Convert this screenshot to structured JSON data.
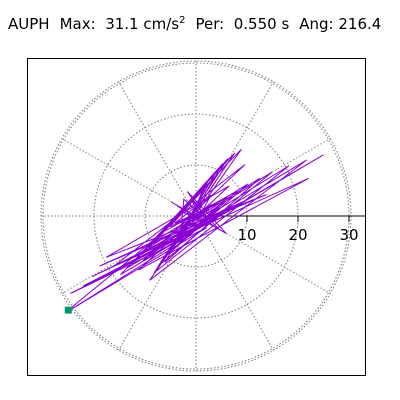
{
  "header": {
    "station": "AUPH",
    "max_label": "Max:",
    "max_value": "31.1 cm/s",
    "max_exp": "2",
    "per_label": "Per:",
    "per_value": "0.550 s",
    "ang_label": "Ang:",
    "ang_value": "216.4"
  },
  "chart_data": {
    "type": "scatter",
    "subtype": "polar particle-motion trace",
    "radial_ticks": [
      "10",
      "20",
      "30"
    ],
    "radial_tick_values": [
      10,
      20,
      30
    ],
    "r_max": 31.1,
    "max_angle_deg": 216.4,
    "trace_color": "#8a00d4",
    "marker_color": "#00996b",
    "grid": "dotted polar rings and spokes every 30 deg",
    "x": [
      0,
      1.2,
      -0.8,
      2.5,
      -1.6,
      3.1,
      -2.2,
      1.8,
      -3.4,
      4.6,
      -1.1,
      2.9,
      -4.2,
      5.3,
      -2.6,
      1.4,
      -5.1,
      6.2,
      -3.3,
      2.2,
      -6.4,
      8.1,
      -4.7,
      3.5,
      -7.9,
      10.2,
      -5.8,
      4.1,
      -9.3,
      12.5,
      -6.1,
      5.2,
      -10.8,
      14.9,
      -7.4,
      6.3,
      -12.1,
      18.3,
      -8.2,
      7.6,
      -13.5,
      21.7,
      -9.1,
      8.9,
      -14.8,
      25.0,
      -10.4,
      9.6,
      -16.2,
      22.1,
      -11.3,
      6.5,
      -17.6,
      13.8,
      -18.9,
      9.2,
      -20.4,
      6.7,
      -22.1,
      4.3,
      -24.6,
      2.1,
      -25.0,
      -3.1,
      -2.4,
      3.6,
      -4.8,
      5.9,
      -1.7,
      2.8,
      -3.6,
      4.4,
      -0.9,
      1.6,
      -2.7,
      0
    ],
    "y": [
      0,
      0.9,
      -1.1,
      1.4,
      -0.6,
      2.3,
      -1.9,
      3.4,
      -2.2,
      1.7,
      -3.6,
      4.1,
      -1.4,
      2.8,
      -4.3,
      5.2,
      -2.1,
      3.6,
      -5.5,
      6.4,
      -3.1,
      4.9,
      -6.6,
      7.3,
      -4.8,
      6.3,
      -7.8,
      8.9,
      -6.2,
      7.4,
      -9.1,
      10.2,
      -7.6,
      8.6,
      -9.8,
      11.3,
      -8.9,
      9.9,
      -11.1,
      12.4,
      -10.2,
      11.0,
      -12.6,
      13.1,
      -11.5,
      12.0,
      -8.7,
      10.1,
      -9.9,
      7.4,
      -10.6,
      5.9,
      -8.1,
      4.2,
      -9.8,
      2.8,
      -11.9,
      1.1,
      -13.7,
      -0.5,
      -15.2,
      -2.3,
      -18.6,
      -4.9,
      3.3,
      -2.1,
      2.7,
      -3.4,
      4.8,
      -1.6,
      1.9,
      -2.5,
      3.2,
      -1.2,
      0.8,
      0
    ]
  }
}
